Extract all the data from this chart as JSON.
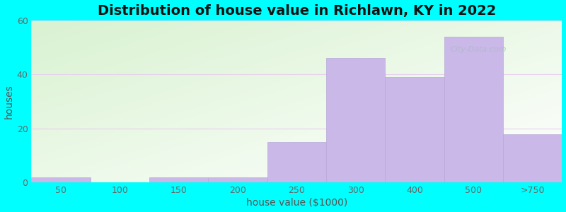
{
  "title": "Distribution of house value in Richlawn, KY in 2022",
  "xlabel": "house value ($1000)",
  "ylabel": "houses",
  "background_color": "#00FFFF",
  "bar_color": "#c9b8e8",
  "bar_edge_color": "#b8a8d8",
  "categories": [
    "50",
    "100",
    "150",
    "200",
    "250",
    "300",
    "400",
    "500",
    ">750"
  ],
  "values": [
    2,
    0,
    2,
    2,
    15,
    46,
    39,
    54,
    18
  ],
  "ylim": [
    0,
    60
  ],
  "yticks": [
    0,
    20,
    40,
    60
  ],
  "grid_color": "#e8d0ee",
  "title_fontsize": 14,
  "axis_label_fontsize": 10,
  "tick_fontsize": 9,
  "watermark_text": "City-Data.com"
}
